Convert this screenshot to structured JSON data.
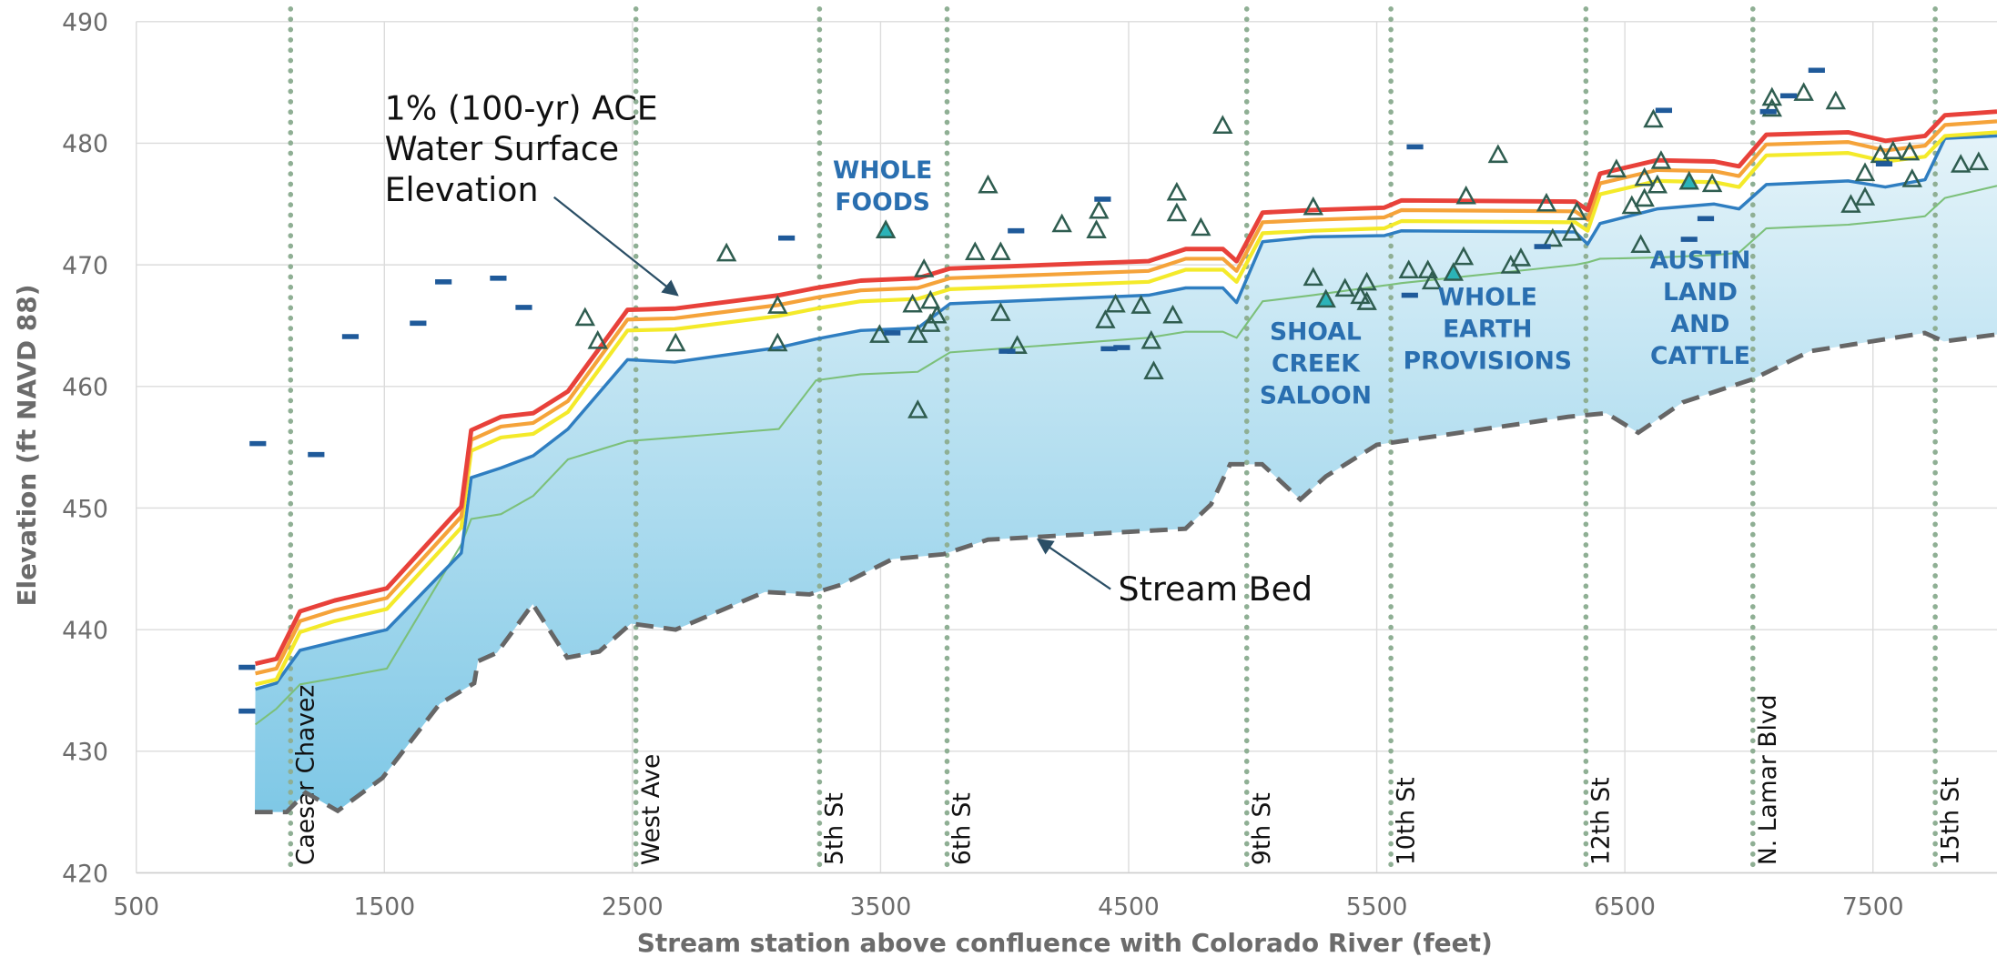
{
  "chart_data": {
    "type": "line",
    "xlabel": "Stream station above confluence with Colorado River (feet)",
    "ylabel": "Elevation (ft NAVD 88)",
    "xlim": [
      500,
      8000
    ],
    "ylim": [
      420,
      490
    ],
    "xticks": [
      500,
      1500,
      2500,
      3500,
      4500,
      5500,
      6500,
      7500
    ],
    "yticks": [
      420,
      430,
      440,
      450,
      460,
      470,
      480,
      490
    ],
    "grid": true,
    "x": [
      980,
      1065,
      1160,
      1300,
      1510,
      1810,
      1850,
      1970,
      2100,
      2240,
      2480,
      2670,
      3090,
      3240,
      3420,
      3650,
      3780,
      4580,
      4730,
      4880,
      4935,
      5040,
      5240,
      5530,
      5600,
      6300,
      6350,
      6400,
      6630,
      6860,
      6960,
      7070,
      7400,
      7550,
      7710,
      7790,
      8000
    ],
    "series": [
      {
        "color": "#e8413a",
        "width": 3.5,
        "values": [
          437.2,
          437.6,
          441.5,
          442.4,
          443.4,
          450.1,
          456.4,
          457.5,
          457.8,
          459.6,
          466.3,
          466.4,
          467.5,
          468.1,
          468.7,
          468.9,
          469.7,
          470.3,
          471.3,
          471.3,
          470.3,
          474.3,
          474.5,
          474.7,
          475.3,
          475.2,
          474.5,
          477.5,
          478.6,
          478.5,
          478.1,
          480.7,
          480.9,
          480.2,
          480.6,
          482.3,
          482.6
        ]
      },
      {
        "color": "#f5a33a",
        "width": 3,
        "values": [
          436.4,
          436.8,
          440.7,
          441.6,
          442.6,
          449.3,
          455.6,
          456.7,
          457.0,
          458.8,
          465.5,
          465.6,
          466.7,
          467.3,
          467.9,
          468.1,
          468.9,
          469.5,
          470.5,
          470.5,
          469.5,
          473.5,
          473.7,
          473.9,
          474.5,
          474.4,
          473.7,
          476.7,
          477.8,
          477.7,
          477.3,
          479.9,
          480.1,
          479.4,
          479.8,
          481.5,
          481.8
        ]
      },
      {
        "color": "#f4ea2a",
        "width": 3,
        "values": [
          435.5,
          435.9,
          439.8,
          440.7,
          441.7,
          448.4,
          454.7,
          455.8,
          456.1,
          457.9,
          464.6,
          464.7,
          465.8,
          466.4,
          467.0,
          467.2,
          468.0,
          468.6,
          469.6,
          469.6,
          468.6,
          472.6,
          472.8,
          473.0,
          473.6,
          473.5,
          472.8,
          475.8,
          476.9,
          476.8,
          476.4,
          479.0,
          479.2,
          478.5,
          478.9,
          480.6,
          480.9
        ]
      },
      {
        "color": "#2f7ec1",
        "width": 2.5,
        "values": [
          435.1,
          435.6,
          438.3,
          439.0,
          440.0,
          446.3,
          452.5,
          453.3,
          454.3,
          456.5,
          462.2,
          462.0,
          463.2,
          463.9,
          464.6,
          464.8,
          466.8,
          467.5,
          468.1,
          468.1,
          466.9,
          471.9,
          472.3,
          472.4,
          472.8,
          472.7,
          471.7,
          473.4,
          474.6,
          475.0,
          474.6,
          476.6,
          476.9,
          476.4,
          477.0,
          480.4,
          480.6
        ]
      },
      {
        "color": "#7cc07a",
        "width": 1.5,
        "values": [
          432.2,
          433.5,
          435.5,
          436.0,
          436.8,
          447.0,
          449.1,
          449.5,
          451.0,
          454.0,
          455.5,
          455.8,
          456.5,
          460.5,
          461.0,
          461.2,
          462.8,
          464.0,
          464.5,
          464.5,
          464.0,
          467.0,
          467.5,
          468.3,
          468.5,
          470.0,
          470.2,
          470.5,
          470.6,
          470.8,
          471.0,
          473.0,
          473.3,
          473.6,
          474.0,
          475.5,
          476.5
        ]
      }
    ],
    "stream_bed": {
      "color": "#666666",
      "dashed": true,
      "x": [
        978,
        1106,
        1183,
        1312,
        1492,
        1723,
        1862,
        1877,
        1954,
        2098,
        2237,
        2366,
        2494,
        2674,
        3034,
        3214,
        3342,
        3548,
        3753,
        3933,
        4729,
        4832,
        4909,
        5038,
        5192,
        5295,
        5500,
        6271,
        6425,
        6554,
        6734,
        7016,
        7247,
        7709,
        7786,
        8008
      ],
      "values": [
        425.0,
        425.0,
        426.6,
        425.1,
        427.8,
        433.9,
        435.6,
        437.4,
        438.1,
        442.1,
        437.7,
        438.2,
        440.5,
        440.0,
        443.1,
        442.9,
        443.7,
        445.8,
        446.2,
        447.4,
        448.3,
        450.3,
        453.6,
        453.6,
        450.7,
        452.6,
        455.2,
        457.5,
        457.8,
        456.2,
        458.7,
        460.6,
        462.9,
        464.4,
        463.7,
        464.3
      ]
    },
    "points": [
      {
        "type": "scatter",
        "marker": "triangle",
        "color": "#2f5d50",
        "fill": "none",
        "x": [
          2309,
          2360,
          2674,
          2879,
          3085,
          3085,
          3496,
          3629,
          3650,
          3650,
          3675,
          3701,
          3701,
          3727,
          3881,
          3933,
          3984,
          3984,
          4051,
          4231,
          4370,
          4380,
          4406,
          4447,
          4550,
          4591,
          4601,
          4678,
          4694,
          4694,
          4791,
          4879,
          5244,
          5244,
          5372,
          5434,
          5460,
          5460,
          5629,
          5706,
          5722,
          5850,
          5860,
          5989,
          6040,
          6081,
          6184,
          6209,
          6286,
          6307,
          6466,
          6528,
          6564,
          6579,
          6579,
          6615,
          6631,
          6646,
          6852,
          7093,
          7093,
          7221,
          7350,
          7411,
          7468,
          7468,
          7530,
          7581,
          7648,
          7658,
          7854,
          7926
        ],
        "values": [
          465.6,
          463.7,
          463.5,
          470.9,
          466.6,
          463.5,
          464.2,
          466.7,
          458.0,
          464.2,
          469.6,
          467.0,
          465.1,
          465.8,
          471.0,
          476.5,
          471.0,
          466.0,
          463.3,
          473.3,
          472.8,
          474.4,
          465.4,
          466.7,
          466.6,
          463.7,
          461.2,
          465.8,
          475.9,
          474.2,
          473.0,
          481.4,
          468.9,
          474.7,
          468.0,
          467.4,
          466.9,
          468.5,
          469.5,
          469.5,
          468.6,
          470.6,
          475.6,
          479.0,
          469.9,
          470.5,
          475.0,
          472.1,
          472.6,
          474.3,
          477.8,
          474.8,
          471.6,
          475.4,
          477.1,
          481.9,
          476.5,
          478.5,
          476.6,
          483.7,
          482.8,
          484.1,
          483.4,
          474.9,
          475.5,
          477.5,
          479.0,
          479.3,
          479.2,
          477.0,
          478.2,
          478.4
        ]
      },
      {
        "type": "scatter",
        "marker": "triangle",
        "color": "#2f5d50",
        "fill": "#2bb3b8",
        "x": [
          3521,
          5295,
          5809,
          6759
        ],
        "values": [
          472.8,
          467.1,
          469.3,
          476.8
        ]
      },
      {
        "type": "scatter",
        "marker": "dash",
        "color": "#1f5a9a",
        "x": [
          990,
          946,
          946,
          1225,
          1363,
          1636,
          1738,
          1959,
          2062,
          3121,
          3547,
          4046,
          4010,
          4395,
          4421,
          4472,
          5633,
          5654,
          6168,
          6657,
          6759,
          6826,
          7078,
          7160,
          7273,
          7545
        ],
        "values": [
          455.3,
          436.9,
          433.3,
          454.4,
          464.1,
          465.2,
          468.6,
          468.9,
          466.5,
          472.2,
          464.4,
          472.8,
          462.9,
          475.4,
          463.1,
          463.2,
          467.5,
          479.7,
          471.5,
          482.7,
          472.1,
          473.8,
          482.6,
          483.9,
          486.0,
          478.3
        ]
      }
    ],
    "streets": [
      {
        "label": "Caesar Chavez",
        "x": 1122
      },
      {
        "label": "West Ave",
        "x": 2514
      },
      {
        "label": "5th St",
        "x": 3254
      },
      {
        "label": "6th St",
        "x": 3768
      },
      {
        "label": "9th St",
        "x": 4976
      },
      {
        "label": "10th St",
        "x": 5557
      },
      {
        "label": "12th St",
        "x": 6343
      },
      {
        "label": "N. Lamar Blvd",
        "x": 7016
      },
      {
        "label": "15th St",
        "x": 7751
      }
    ],
    "annotations": [
      {
        "lines": [
          "1% (100-yr) ACE",
          "Water Surface",
          "Elevation"
        ]
      },
      {
        "lines": [
          "Stream Bed"
        ]
      },
      {
        "lines": [
          "WHOLE",
          "FOODS"
        ]
      },
      {
        "lines": [
          "SHOAL",
          "CREEK",
          "SALOON"
        ]
      },
      {
        "lines": [
          "WHOLE",
          "EARTH",
          "PROVISIONS"
        ]
      },
      {
        "lines": [
          "AUSTIN",
          "LAND",
          "AND",
          "CATTLE"
        ]
      }
    ]
  }
}
